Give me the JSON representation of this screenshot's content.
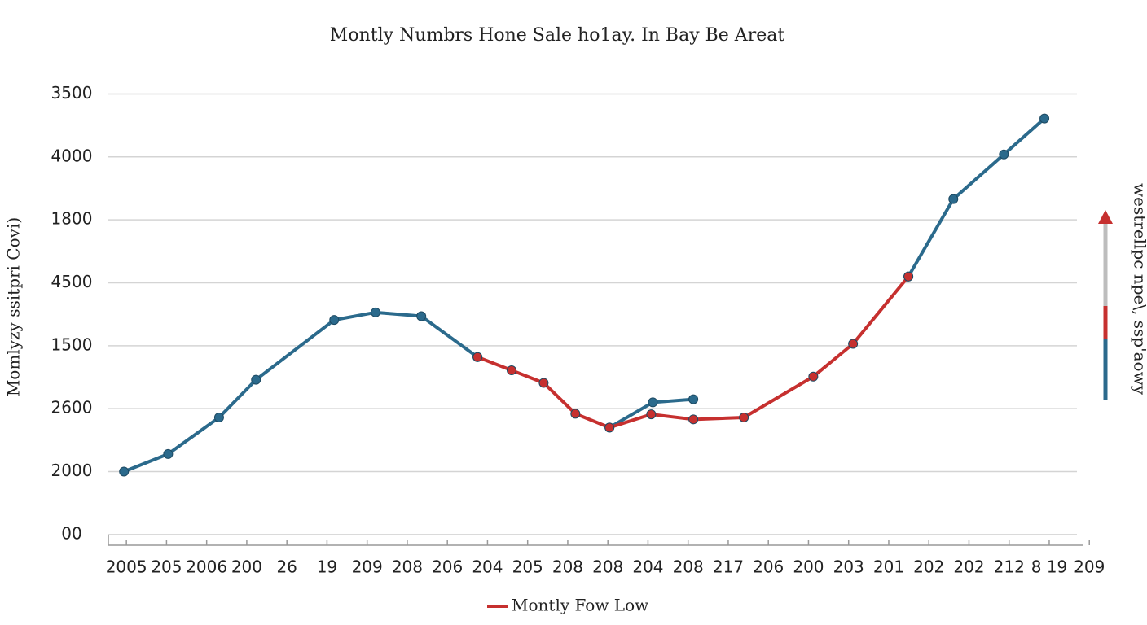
{
  "chart_data": {
    "type": "line",
    "title": "Montly Numbrs Hone Sale ho1ay. In Bay Be Areat",
    "y_label": "Momlyzy ssitpri Covi)",
    "side_label": "westrellpc npe\\, ssp'aowy",
    "grid": true,
    "legend": "bottom",
    "ylim": [
      -0.17,
      7.2
    ],
    "yticks": [
      {
        "value": 0,
        "label": "00"
      },
      {
        "value": 1,
        "label": "2000"
      },
      {
        "value": 2,
        "label": "2600"
      },
      {
        "value": 3,
        "label": "1500"
      },
      {
        "value": 4,
        "label": "4500"
      },
      {
        "value": 5,
        "label": "1800"
      },
      {
        "value": 6,
        "label": "4000"
      },
      {
        "value": 7,
        "label": "3500"
      }
    ],
    "xlim": [
      -0.45,
      24.3
    ],
    "xticks": [
      {
        "value": 0,
        "label": "2005"
      },
      {
        "value": 1,
        "label": "205"
      },
      {
        "value": 2,
        "label": "2006"
      },
      {
        "value": 3,
        "label": "200"
      },
      {
        "value": 4,
        "label": "26"
      },
      {
        "value": 5,
        "label": "19"
      },
      {
        "value": 6,
        "label": "209"
      },
      {
        "value": 7,
        "label": "208"
      },
      {
        "value": 8,
        "label": "206"
      },
      {
        "value": 9,
        "label": "204"
      },
      {
        "value": 10,
        "label": "205"
      },
      {
        "value": 11,
        "label": "208"
      },
      {
        "value": 12,
        "label": "208"
      },
      {
        "value": 13,
        "label": "204"
      },
      {
        "value": 14,
        "label": "208"
      },
      {
        "value": 15,
        "label": "217"
      },
      {
        "value": 16,
        "label": "206"
      },
      {
        "value": 17,
        "label": "200"
      },
      {
        "value": 18,
        "label": "203"
      },
      {
        "value": 19,
        "label": "201"
      },
      {
        "value": 20,
        "label": "202"
      },
      {
        "value": 21,
        "label": "202"
      },
      {
        "value": 22,
        "label": "212"
      },
      {
        "value": 23,
        "label": "8 19"
      },
      {
        "value": 24,
        "label": "209"
      }
    ],
    "series": [
      {
        "color": "#2b6a8c",
        "x": [
          -0.06,
          1.04,
          2.31,
          3.23,
          5.18,
          6.21,
          7.35,
          8.75,
          null,
          12.04,
          13.12,
          14.13,
          null,
          19.49,
          20.61,
          21.87,
          22.88
        ],
        "values": [
          1.0,
          1.28,
          1.86,
          2.46,
          3.41,
          3.53,
          3.47,
          2.82,
          null,
          1.7,
          2.1,
          2.15,
          null,
          4.1,
          5.33,
          6.04,
          6.61
        ]
      },
      {
        "name": "Montly Fow Low",
        "color": "#c6302f",
        "x": [
          8.75,
          9.6,
          10.4,
          11.19,
          12.04,
          13.08,
          14.13,
          15.39,
          17.12,
          18.11,
          19.49
        ],
        "values": [
          2.82,
          2.61,
          2.41,
          1.92,
          1.7,
          1.91,
          1.83,
          1.86,
          2.51,
          3.03,
          4.1
        ]
      }
    ]
  }
}
